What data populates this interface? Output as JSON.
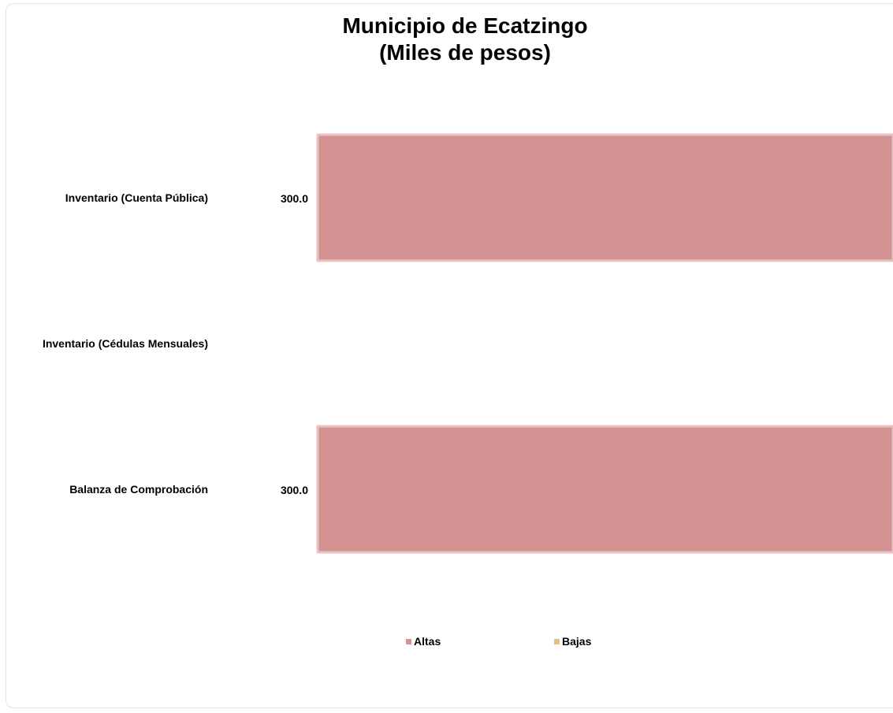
{
  "chart_data": {
    "type": "bar",
    "orientation": "horizontal",
    "title": "Municipio de Ecatzingo",
    "subtitle": "(Miles de pesos)",
    "categories": [
      "Inventario (Cuenta Pública)",
      "Inventario (Cédulas Mensuales)",
      "Balanza de Comprobación"
    ],
    "series": [
      {
        "name": "Altas",
        "color": "#d49393",
        "values": [
          300.0,
          null,
          300.0
        ],
        "labels": [
          "300.0",
          "",
          "300.0"
        ]
      },
      {
        "name": "Bajas",
        "color": "#e8b98a",
        "values": [
          null,
          null,
          null
        ],
        "labels": [
          "",
          "",
          ""
        ]
      }
    ],
    "legend_position": "bottom",
    "grid": false
  }
}
